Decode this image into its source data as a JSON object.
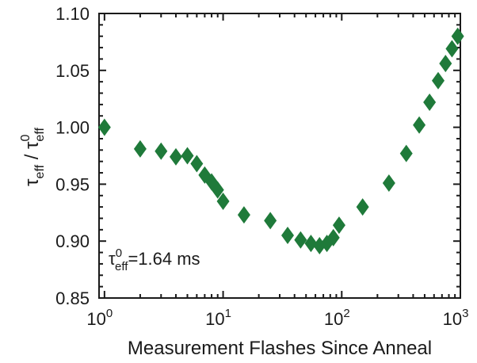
{
  "chart_data": {
    "type": "scatter",
    "xscale": "log",
    "xlim": [
      0.9,
      1000
    ],
    "ylim": [
      0.85,
      1.1
    ],
    "xlabel": "Measurement Flashes Since Anneal",
    "ylabel": {
      "tau": "τ",
      "eff": "eff",
      "slash": " / ",
      "zero": "0"
    },
    "x_ticks": [
      {
        "value": 1,
        "base": "10",
        "exp": "0"
      },
      {
        "value": 10,
        "base": "10",
        "exp": "1"
      },
      {
        "value": 100,
        "base": "10",
        "exp": "2"
      },
      {
        "value": 1000,
        "base": "10",
        "exp": "3"
      }
    ],
    "y_ticks": [
      {
        "value": 0.85,
        "label": "0.85"
      },
      {
        "value": 0.9,
        "label": "0.90"
      },
      {
        "value": 0.95,
        "label": "0.95"
      },
      {
        "value": 1.0,
        "label": "1.00"
      },
      {
        "value": 1.05,
        "label": "1.05"
      },
      {
        "value": 1.1,
        "label": "1.10"
      }
    ],
    "annotation": {
      "tau": "τ",
      "sub": "eff",
      "sup": "0",
      "rest": "=1.64 ms"
    },
    "marker_color": "#1f7a3a",
    "grid": false,
    "series": [
      {
        "marker": "diamond",
        "points": [
          {
            "x": 1,
            "y": 1.0
          },
          {
            "x": 2,
            "y": 0.981
          },
          {
            "x": 3,
            "y": 0.979
          },
          {
            "x": 4,
            "y": 0.974
          },
          {
            "x": 5,
            "y": 0.975
          },
          {
            "x": 6,
            "y": 0.968
          },
          {
            "x": 7,
            "y": 0.958
          },
          {
            "x": 8,
            "y": 0.952
          },
          {
            "x": 9,
            "y": 0.945
          },
          {
            "x": 10,
            "y": 0.935
          },
          {
            "x": 15,
            "y": 0.923
          },
          {
            "x": 25,
            "y": 0.918
          },
          {
            "x": 35,
            "y": 0.905
          },
          {
            "x": 45,
            "y": 0.901
          },
          {
            "x": 55,
            "y": 0.898
          },
          {
            "x": 65,
            "y": 0.896
          },
          {
            "x": 75,
            "y": 0.898
          },
          {
            "x": 85,
            "y": 0.903
          },
          {
            "x": 95,
            "y": 0.914
          },
          {
            "x": 150,
            "y": 0.93
          },
          {
            "x": 250,
            "y": 0.951
          },
          {
            "x": 350,
            "y": 0.977
          },
          {
            "x": 450,
            "y": 1.002
          },
          {
            "x": 550,
            "y": 1.022
          },
          {
            "x": 650,
            "y": 1.041
          },
          {
            "x": 750,
            "y": 1.056
          },
          {
            "x": 850,
            "y": 1.069
          },
          {
            "x": 950,
            "y": 1.08
          }
        ]
      }
    ]
  }
}
